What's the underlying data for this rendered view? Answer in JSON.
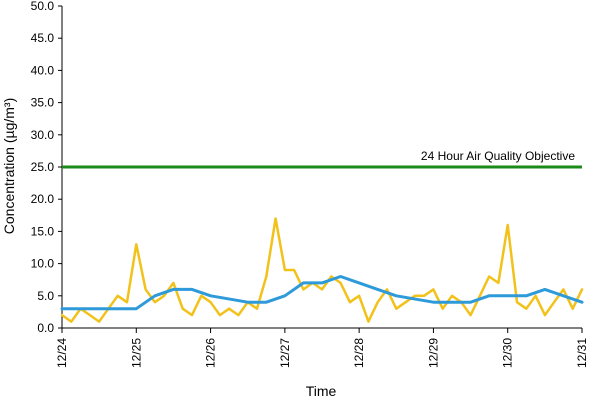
{
  "chart_data": {
    "type": "line",
    "title": "",
    "xlabel": "Time",
    "ylabel": "Concentration (µg/m³)",
    "ylim": [
      0,
      50
    ],
    "y_ticks": [
      "0.0",
      "5.0",
      "10.0",
      "15.0",
      "20.0",
      "25.0",
      "30.0",
      "35.0",
      "40.0",
      "45.0",
      "50.0"
    ],
    "x_ticks": [
      "12/24",
      "12/25",
      "12/26",
      "12/27",
      "12/28",
      "12/29",
      "12/30",
      "12/31"
    ],
    "x_unit": "days",
    "grid": false,
    "legend": "none",
    "objective": {
      "label": "24 Hour Air Quality Objective",
      "value": 25,
      "color": "#1a8a1a"
    },
    "series": [
      {
        "color": "#f2c21b",
        "x": [
          "12/24 00:00",
          "12/24 03:00",
          "12/24 06:00",
          "12/24 09:00",
          "12/24 12:00",
          "12/24 15:00",
          "12/24 18:00",
          "12/24 21:00",
          "12/25 00:00",
          "12/25 03:00",
          "12/25 06:00",
          "12/25 09:00",
          "12/25 12:00",
          "12/25 15:00",
          "12/25 18:00",
          "12/25 21:00",
          "12/26 00:00",
          "12/26 03:00",
          "12/26 06:00",
          "12/26 09:00",
          "12/26 12:00",
          "12/26 15:00",
          "12/26 18:00",
          "12/26 21:00",
          "12/27 00:00",
          "12/27 03:00",
          "12/27 06:00",
          "12/27 09:00",
          "12/27 12:00",
          "12/27 15:00",
          "12/27 18:00",
          "12/27 21:00",
          "12/28 00:00",
          "12/28 03:00",
          "12/28 06:00",
          "12/28 09:00",
          "12/28 12:00",
          "12/28 15:00",
          "12/28 18:00",
          "12/28 21:00",
          "12/29 00:00",
          "12/29 03:00",
          "12/29 06:00",
          "12/29 09:00",
          "12/29 12:00",
          "12/29 15:00",
          "12/29 18:00",
          "12/29 21:00",
          "12/30 00:00",
          "12/30 03:00",
          "12/30 06:00",
          "12/30 09:00",
          "12/30 12:00",
          "12/30 15:00",
          "12/30 18:00",
          "12/30 21:00",
          "12/31 00:00"
        ],
        "values": [
          2,
          1,
          3,
          2,
          1,
          3,
          5,
          4,
          13,
          6,
          4,
          5,
          7,
          3,
          2,
          5,
          4,
          2,
          3,
          2,
          4,
          3,
          8,
          17,
          9,
          9,
          6,
          7,
          6,
          8,
          7,
          4,
          5,
          1,
          4,
          6,
          3,
          4,
          5,
          5,
          6,
          3,
          5,
          4,
          2,
          5,
          8,
          7,
          16,
          4,
          3,
          5,
          2,
          4,
          6,
          3,
          6
        ]
      },
      {
        "color": "#2e9ad9",
        "x": [
          "12/24 00:00",
          "12/24 12:00",
          "12/25 00:00",
          "12/25 06:00",
          "12/25 12:00",
          "12/25 18:00",
          "12/26 00:00",
          "12/26 12:00",
          "12/26 18:00",
          "12/27 00:00",
          "12/27 06:00",
          "12/27 12:00",
          "12/27 18:00",
          "12/28 00:00",
          "12/28 06:00",
          "12/28 12:00",
          "12/29 00:00",
          "12/29 12:00",
          "12/29 18:00",
          "12/30 00:00",
          "12/30 06:00",
          "12/30 12:00",
          "12/30 18:00",
          "12/31 00:00"
        ],
        "values": [
          3,
          3,
          3,
          5,
          6,
          6,
          5,
          4,
          4,
          5,
          7,
          7,
          8,
          7,
          6,
          5,
          4,
          4,
          5,
          5,
          5,
          6,
          5,
          4
        ]
      }
    ]
  }
}
